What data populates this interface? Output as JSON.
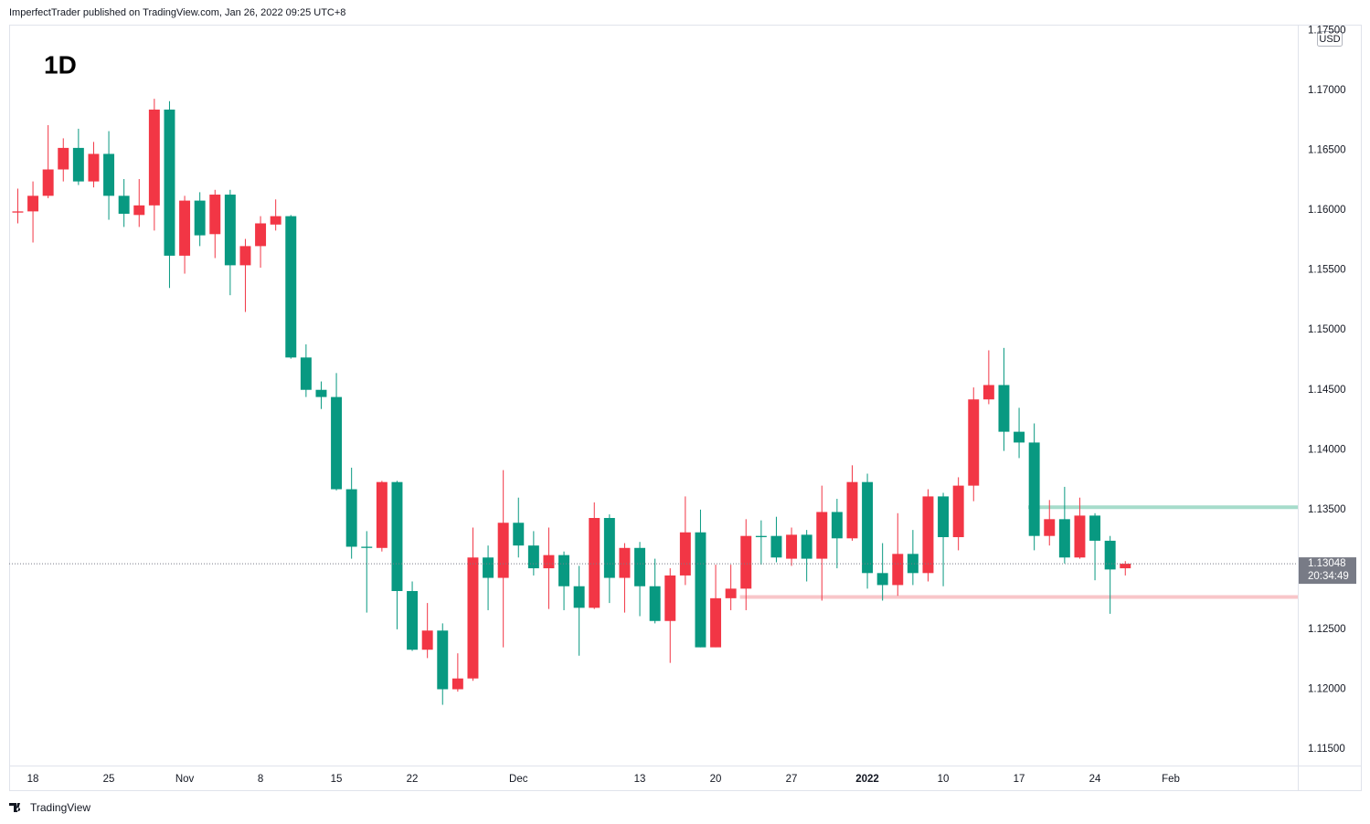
{
  "header": "ImperfectTrader published on TradingView.com, Jan 26, 2022 09:25 UTC+8",
  "brand": "TradingView",
  "chart_data": {
    "type": "candlestick",
    "interval": "1D",
    "currency": "USD",
    "countdown": "20:34:49",
    "up_color": "#f23645",
    "down_color": "#089981",
    "grid": false,
    "x": [
      0,
      1,
      2,
      3,
      4,
      5,
      6,
      7,
      8,
      9,
      10,
      11,
      12,
      13,
      14,
      15,
      16,
      17,
      18,
      19,
      20,
      21,
      22,
      23,
      24,
      25,
      26,
      27,
      28,
      29,
      30,
      31,
      32,
      33,
      34,
      35,
      36,
      37,
      38,
      39,
      40,
      41,
      42,
      43,
      44,
      45,
      46,
      47,
      48,
      49,
      50,
      51,
      52,
      53,
      54,
      55,
      56,
      57,
      58,
      59,
      60,
      61,
      62,
      63,
      64,
      65,
      66,
      67,
      68,
      69,
      70,
      71,
      72,
      73
    ],
    "open": [
      1.1598,
      1.1599,
      1.1612,
      1.1634,
      1.1652,
      1.1624,
      1.1647,
      1.1612,
      1.1596,
      1.1604,
      1.1684,
      1.1562,
      1.1608,
      1.158,
      1.1613,
      1.1554,
      1.157,
      1.1588,
      1.1595,
      1.1477,
      1.145,
      1.1444,
      1.1367,
      1.1319,
      1.1318,
      1.1373,
      1.1282,
      1.1233,
      1.1249,
      1.12,
      1.1209,
      1.131,
      1.1293,
      1.1339,
      1.132,
      1.1301,
      1.1312,
      1.1286,
      1.1268,
      1.1343,
      1.1293,
      1.1318,
      1.1286,
      1.1257,
      1.1295,
      1.1331,
      1.1235,
      1.1276,
      1.1284,
      1.1328,
      1.1328,
      1.1309,
      1.1329,
      1.1309,
      1.1348,
      1.1326,
      1.1373,
      1.1297,
      1.1287,
      1.1313,
      1.1297,
      1.1361,
      1.1327,
      1.137,
      1.1442,
      1.1454,
      1.1415,
      1.1406,
      1.1328,
      1.1342,
      1.131,
      1.1345,
      1.1324,
      1.1301
    ],
    "high": [
      1.1618,
      1.1624,
      1.1671,
      1.166,
      1.1668,
      1.1657,
      1.1666,
      1.1626,
      1.1626,
      1.1693,
      1.1691,
      1.1612,
      1.1615,
      1.1617,
      1.1617,
      1.1576,
      1.1595,
      1.1609,
      1.1596,
      1.1488,
      1.1457,
      1.1464,
      1.1385,
      1.1332,
      1.1374,
      1.1374,
      1.129,
      1.1272,
      1.1255,
      1.123,
      1.1335,
      1.132,
      1.1383,
      1.136,
      1.1332,
      1.1335,
      1.1315,
      1.1303,
      1.1356,
      1.1346,
      1.1322,
      1.1323,
      1.1309,
      1.1301,
      1.1361,
      1.135,
      1.1304,
      1.1304,
      1.1342,
      1.1341,
      1.1344,
      1.1335,
      1.1333,
      1.137,
      1.1359,
      1.1387,
      1.138,
      1.1322,
      1.1347,
      1.1333,
      1.1367,
      1.1364,
      1.1377,
      1.1452,
      1.1483,
      1.1485,
      1.1435,
      1.1422,
      1.1358,
      1.1369,
      1.136,
      1.1347,
      1.1328,
      1.1307
    ],
    "low": [
      1.1589,
      1.1573,
      1.161,
      1.1624,
      1.1621,
      1.1619,
      1.1592,
      1.1586,
      1.1586,
      1.1583,
      1.1535,
      1.1547,
      1.157,
      1.156,
      1.1529,
      1.1515,
      1.1552,
      1.1583,
      1.1476,
      1.1444,
      1.1434,
      1.1366,
      1.1309,
      1.1264,
      1.1315,
      1.125,
      1.1232,
      1.1226,
      1.1187,
      1.1198,
      1.1207,
      1.1266,
      1.1235,
      1.131,
      1.1295,
      1.1267,
      1.1266,
      1.1228,
      1.1267,
      1.1272,
      1.1264,
      1.1261,
      1.1255,
      1.1222,
      1.1287,
      1.1235,
      1.1235,
      1.1266,
      1.1266,
      1.1304,
      1.1306,
      1.1303,
      1.129,
      1.1274,
      1.1301,
      1.1324,
      1.1284,
      1.1274,
      1.1278,
      1.1287,
      1.129,
      1.1286,
      1.1316,
      1.1357,
      1.1438,
      1.1399,
      1.1393,
      1.1316,
      1.132,
      1.1305,
      1.1309,
      1.1291,
      1.1263,
      1.1295
    ],
    "close": [
      1.1599,
      1.1612,
      1.1634,
      1.1652,
      1.1624,
      1.1647,
      1.1612,
      1.1597,
      1.1604,
      1.1684,
      1.1562,
      1.1608,
      1.1579,
      1.1613,
      1.1554,
      1.157,
      1.1589,
      1.1595,
      1.1477,
      1.145,
      1.1444,
      1.1367,
      1.1319,
      1.1318,
      1.1373,
      1.1282,
      1.1233,
      1.1249,
      1.12,
      1.1209,
      1.131,
      1.1293,
      1.1339,
      1.132,
      1.1301,
      1.1312,
      1.1286,
      1.1268,
      1.1343,
      1.1293,
      1.1318,
      1.1286,
      1.1257,
      1.1295,
      1.1331,
      1.1235,
      1.1276,
      1.1284,
      1.1328,
      1.1327,
      1.131,
      1.1329,
      1.1309,
      1.1348,
      1.1326,
      1.1373,
      1.1297,
      1.1287,
      1.1313,
      1.1297,
      1.1361,
      1.1327,
      1.137,
      1.1442,
      1.1454,
      1.1415,
      1.1406,
      1.1328,
      1.1342,
      1.131,
      1.1345,
      1.1324,
      1.13,
      1.13048
    ],
    "levels": [
      {
        "value": 1.1352,
        "x_start": 67,
        "color": "#a6dccb"
      },
      {
        "value": 1.1277,
        "x_start": 48,
        "color": "#f8c6c9"
      }
    ],
    "xlim": [
      -0.57,
      84.37
    ],
    "xticks": [
      {
        "value": 1,
        "label": "18"
      },
      {
        "value": 6,
        "label": "25"
      },
      {
        "value": 11,
        "label": "Nov"
      },
      {
        "value": 16,
        "label": "8"
      },
      {
        "value": 21,
        "label": "15"
      },
      {
        "value": 26,
        "label": "22"
      },
      {
        "value": 33,
        "label": "Dec"
      },
      {
        "value": 41,
        "label": "13"
      },
      {
        "value": 46,
        "label": "20"
      },
      {
        "value": 51,
        "label": "27"
      },
      {
        "value": 56,
        "label": "2022"
      },
      {
        "value": 61,
        "label": "10"
      },
      {
        "value": 66,
        "label": "17"
      },
      {
        "value": 71,
        "label": "24"
      },
      {
        "value": 76,
        "label": "Feb"
      }
    ],
    "ylim": [
      1.11363,
      1.17549
    ],
    "yticks": [
      {
        "value": 1.115,
        "label": "1.11500"
      },
      {
        "value": 1.12,
        "label": "1.12000"
      },
      {
        "value": 1.125,
        "label": "1.12500"
      },
      {
        "value": 1.13,
        "label": "1.13000"
      },
      {
        "value": 1.135,
        "label": "1.13500"
      },
      {
        "value": 1.14,
        "label": "1.14000"
      },
      {
        "value": 1.145,
        "label": "1.14500"
      },
      {
        "value": 1.15,
        "label": "1.15000"
      },
      {
        "value": 1.155,
        "label": "1.15500"
      },
      {
        "value": 1.16,
        "label": "1.16000"
      },
      {
        "value": 1.165,
        "label": "1.16500"
      },
      {
        "value": 1.17,
        "label": "1.17000"
      },
      {
        "value": 1.175,
        "label": "1.17500"
      }
    ]
  }
}
